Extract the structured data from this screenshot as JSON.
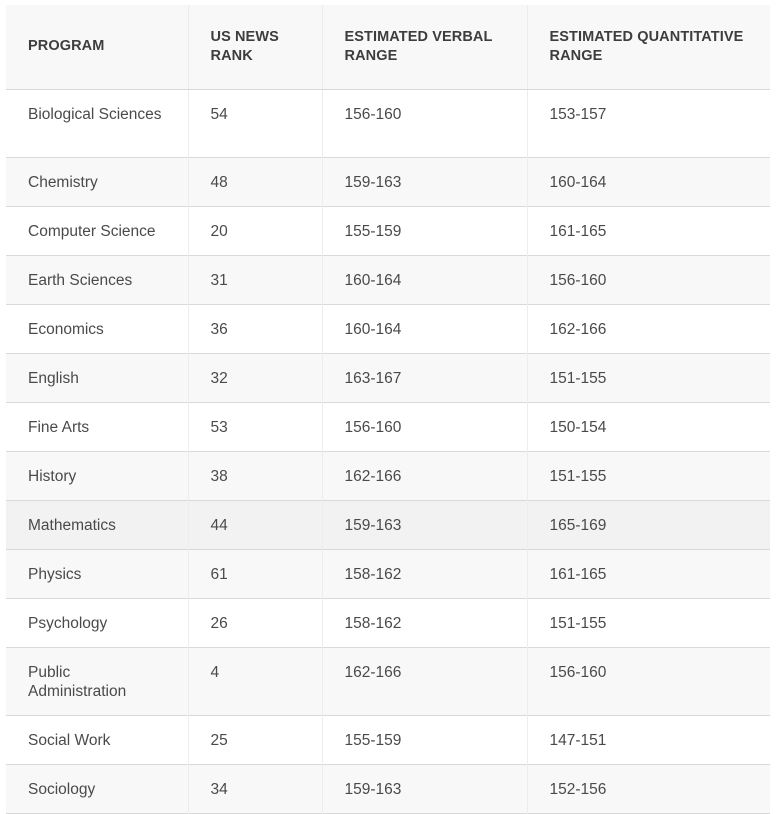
{
  "table": {
    "columns": [
      "PROGRAM",
      "US NEWS RANK",
      "ESTIMATED VERBAL RANGE",
      "ESTIMATED QUANTITATIVE RANGE"
    ],
    "rows": [
      {
        "program": "Biological Sciences",
        "rank": "54",
        "verbal": "156-160",
        "quant": "153-157"
      },
      {
        "program": "Chemistry",
        "rank": "48",
        "verbal": "159-163",
        "quant": "160-164"
      },
      {
        "program": "Computer Science",
        "rank": "20",
        "verbal": "155-159",
        "quant": "161-165"
      },
      {
        "program": "Earth Sciences",
        "rank": "31",
        "verbal": "160-164",
        "quant": "156-160"
      },
      {
        "program": "Economics",
        "rank": "36",
        "verbal": "160-164",
        "quant": "162-166"
      },
      {
        "program": "English",
        "rank": "32",
        "verbal": "163-167",
        "quant": "151-155"
      },
      {
        "program": "Fine Arts",
        "rank": "53",
        "verbal": "156-160",
        "quant": "150-154"
      },
      {
        "program": "History",
        "rank": "38",
        "verbal": "162-166",
        "quant": "151-155"
      },
      {
        "program": "Mathematics",
        "rank": "44",
        "verbal": "159-163",
        "quant": "165-169"
      },
      {
        "program": "Physics",
        "rank": "61",
        "verbal": "158-162",
        "quant": "161-165"
      },
      {
        "program": "Psychology",
        "rank": "26",
        "verbal": "158-162",
        "quant": "151-155"
      },
      {
        "program": "Public Administration",
        "rank": "4",
        "verbal": "162-166",
        "quant": "156-160"
      },
      {
        "program": "Social Work",
        "rank": "25",
        "verbal": "155-159",
        "quant": "147-151"
      },
      {
        "program": "Sociology",
        "rank": "34",
        "verbal": "159-163",
        "quant": "152-156"
      }
    ]
  }
}
